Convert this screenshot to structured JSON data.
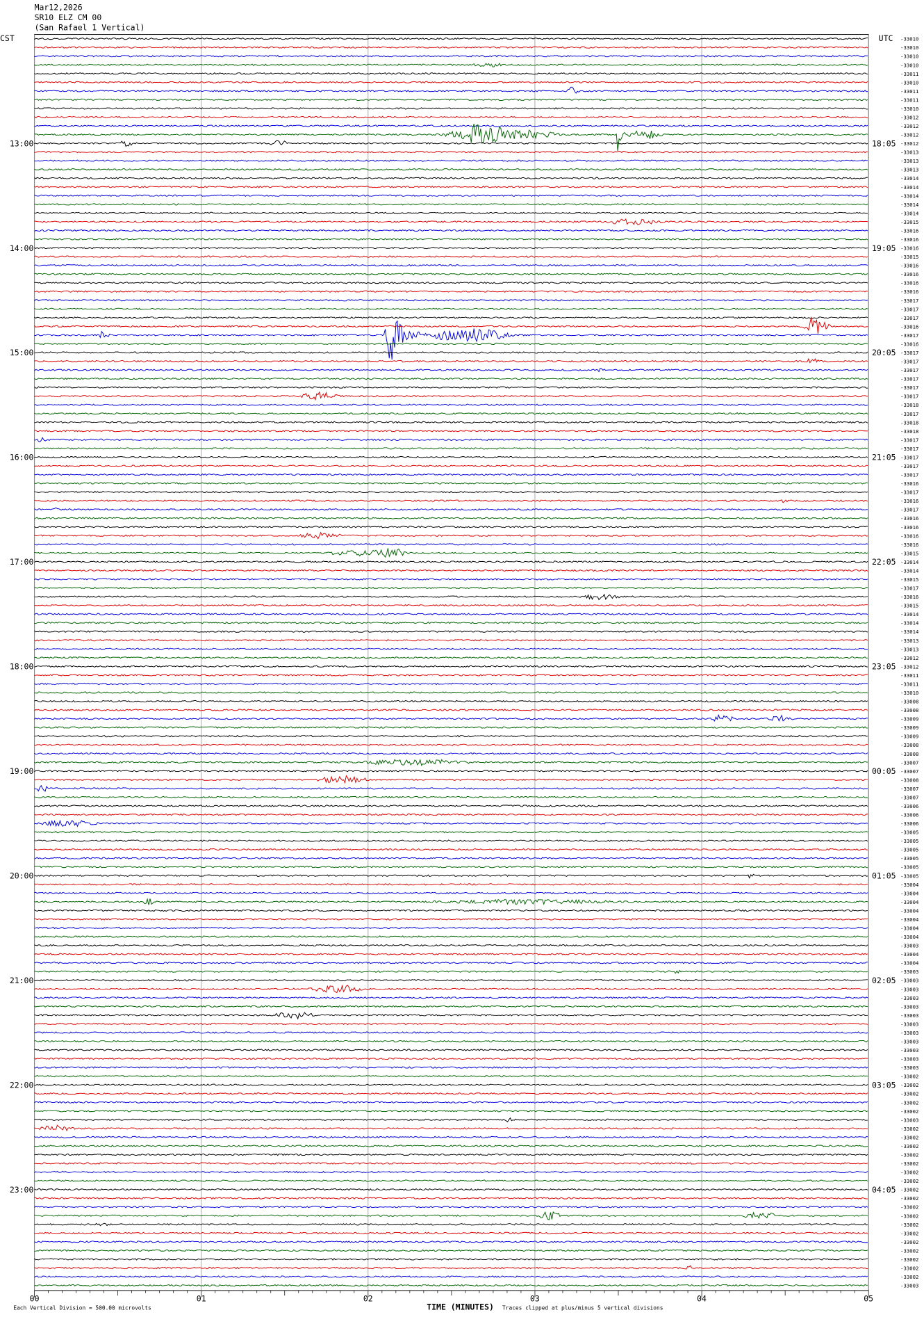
{
  "header": {
    "date": "Mar12,2026",
    "station": "SR10 ELZ CM 00",
    "location": "(San Rafael 1 Vertical)"
  },
  "left_axis": {
    "title": "CST",
    "labels": [
      "13:00",
      "14:00",
      "15:00",
      "16:00",
      "17:00",
      "18:00",
      "19:00",
      "20:00",
      "21:00",
      "22:00",
      "23:00"
    ]
  },
  "right_axis": {
    "title": "UTC",
    "labels": [
      "18:05",
      "19:05",
      "20:05",
      "21:05",
      "22:05",
      "23:05",
      "00:05",
      "01:05",
      "02:05",
      "03:05",
      "04:05"
    ],
    "trace_values": [
      -33010,
      -33010,
      -33010,
      -33010,
      -33011,
      -33010,
      -33011,
      -33011,
      -33010,
      -33012,
      -33012,
      -33012,
      -33012,
      -33013,
      -33013,
      -33013,
      -33014,
      -33014,
      -33014,
      -33014,
      -33014,
      -33015,
      -33016,
      -33016,
      -33016,
      -33015,
      -33016,
      -33016,
      -33016,
      -33016,
      -33017,
      -33017,
      -33017,
      -33016,
      -33017,
      -33016,
      -33017,
      -33017,
      -33017,
      -33017,
      -33017,
      -33017,
      -33018,
      -33017,
      -33018,
      -33018,
      -33017,
      -33017,
      -33017,
      -33017,
      -33017,
      -33016,
      -33017,
      -33016,
      -33017,
      -33016,
      -33016,
      -33016,
      -33016,
      -33015,
      -33014,
      -33014,
      -33015,
      -33017,
      -33016,
      -33015,
      -33014,
      -33014,
      -33014,
      -33013,
      -33013,
      -33012,
      -33012,
      -33011,
      -33011,
      -33010,
      -33008,
      -33008,
      -33009,
      -33009,
      -33009,
      -33008,
      -33008,
      -33007,
      -33007,
      -33008,
      -33007,
      -33007,
      -33006,
      -33006,
      -33006,
      -33005,
      -33005,
      -33005,
      -33005,
      -33005,
      -33005,
      -33004,
      -33004,
      -33004,
      -33004,
      -33004,
      -33004,
      -33004,
      -33003,
      -33004,
      -33004,
      -33003,
      -33003,
      -33003,
      -33003,
      -33003,
      -33003,
      -33003,
      -33003,
      -33003,
      -33003,
      -33003,
      -33003,
      -33002,
      -33002,
      -33002,
      -33002,
      -33002,
      -33003,
      -33002,
      -33002,
      -33002,
      -33002,
      -33002,
      -33002,
      -33002,
      -33002,
      -33002,
      -33002,
      -33002,
      -33002,
      -33002,
      -33002,
      -33002,
      -33002,
      -33002,
      -33002,
      -33003
    ]
  },
  "x_axis": {
    "labels": [
      "00",
      "01",
      "02",
      "03",
      "04",
      "05"
    ],
    "title": "TIME (MINUTES)"
  },
  "footer": {
    "scale": "Each Vertical Division = 500.00 microvolts",
    "clipping": "Traces clipped at plus/minus 5 vertical divisions"
  }
}
